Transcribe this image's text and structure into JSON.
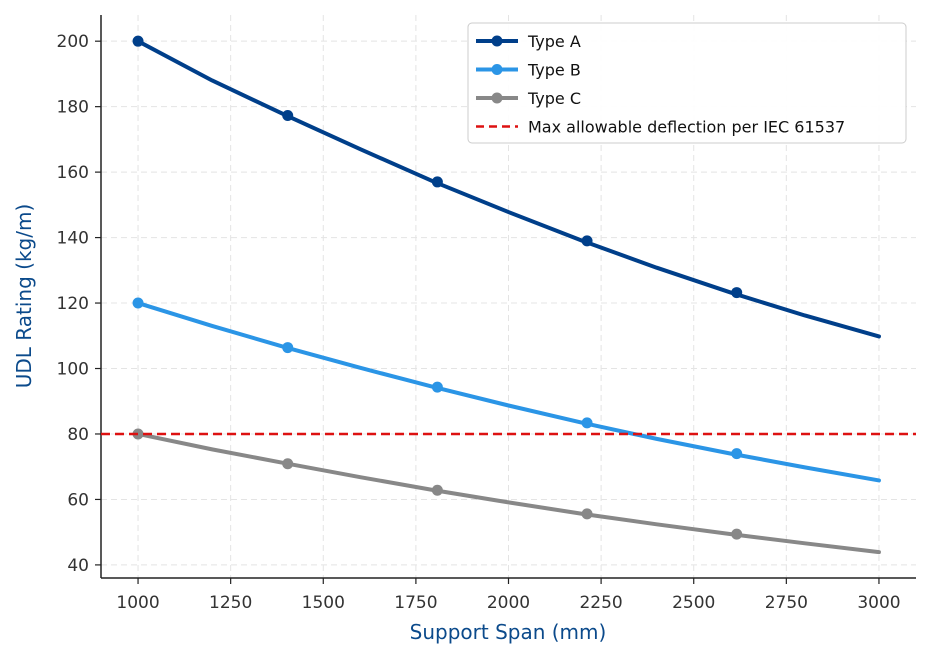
{
  "chart_data": {
    "type": "line",
    "title": "",
    "xlabel": "Support Span (mm)",
    "ylabel": "UDL Rating (kg/m)",
    "xlim": [
      900,
      3100
    ],
    "ylim": [
      36,
      208
    ],
    "xticks": [
      1000,
      1250,
      1500,
      1750,
      2000,
      2250,
      2500,
      2750,
      3000
    ],
    "yticks": [
      40,
      60,
      80,
      100,
      120,
      140,
      160,
      180,
      200
    ],
    "grid": true,
    "legend_position": "top-right",
    "series": [
      {
        "name": "Type A",
        "color": "#003f8a",
        "x": [
          1000,
          1200,
          1400,
          1600,
          1800,
          2000,
          2200,
          2400,
          2600,
          2800,
          3000
        ],
        "values": [
          200,
          188,
          177.3,
          167,
          157,
          147.8,
          139,
          130.8,
          123.2,
          116.2,
          109.8
        ],
        "marker_x": [
          1000,
          1404,
          1808,
          2212,
          2616
        ],
        "marker_values": [
          200,
          177.3,
          157,
          139,
          123.2
        ]
      },
      {
        "name": "Type B",
        "color": "#2b95e6",
        "x": [
          1000,
          1200,
          1400,
          1600,
          1800,
          2000,
          2200,
          2400,
          2600,
          2800,
          3000
        ],
        "values": [
          120,
          113,
          106.4,
          100.2,
          94.3,
          88.7,
          83.4,
          78.5,
          74,
          69.8,
          65.8
        ],
        "marker_x": [
          1000,
          1404,
          1808,
          2212,
          2616
        ],
        "marker_values": [
          120,
          106.4,
          94.3,
          83.4,
          74
        ]
      },
      {
        "name": "Type C",
        "color": "#888888",
        "x": [
          1000,
          1200,
          1400,
          1600,
          1800,
          2000,
          2200,
          2400,
          2600,
          2800,
          3000
        ],
        "values": [
          80,
          75.3,
          71,
          66.8,
          62.8,
          59.1,
          55.6,
          52.4,
          49.4,
          46.6,
          43.9
        ],
        "marker_x": [
          1000,
          1404,
          1808,
          2212,
          2616
        ],
        "marker_values": [
          80,
          70.9,
          62.8,
          55.6,
          49.4
        ]
      }
    ],
    "reference_line": {
      "name": "Max allowable deflection per IEC 61537",
      "y": 80,
      "color": "#dd1111",
      "style": "dashed"
    }
  }
}
